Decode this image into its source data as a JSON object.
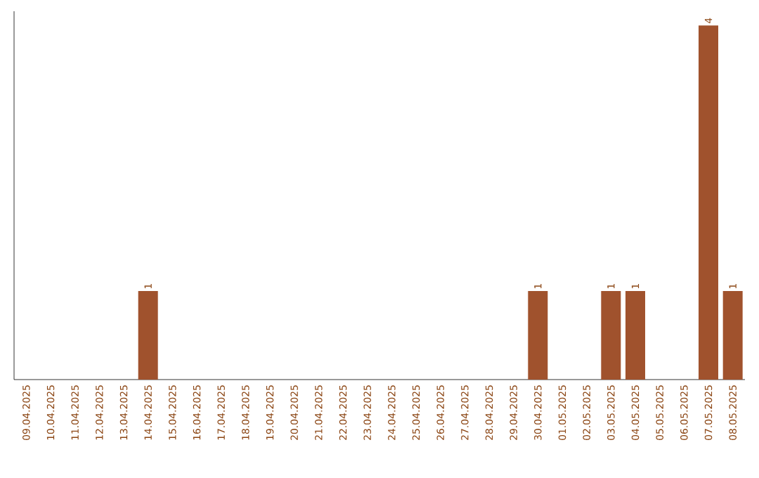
{
  "chart_data": {
    "type": "bar",
    "categories": [
      "09.04.2025",
      "10.04.2025",
      "11.04.2025",
      "12.04.2025",
      "13.04.2025",
      "14.04.2025",
      "15.04.2025",
      "16.04.2025",
      "17.04.2025",
      "18.04.2025",
      "19.04.2025",
      "20.04.2025",
      "21.04.2025",
      "22.04.2025",
      "23.04.2025",
      "24.04.2025",
      "25.04.2025",
      "26.04.2025",
      "27.04.2025",
      "28.04.2025",
      "29.04.2025",
      "30.04.2025",
      "01.05.2025",
      "02.05.2025",
      "03.05.2025",
      "04.05.2025",
      "05.05.2025",
      "06.05.2025",
      "07.05.2025",
      "08.05.2025"
    ],
    "values": [
      0,
      0,
      0,
      0,
      0,
      1,
      0,
      0,
      0,
      0,
      0,
      0,
      0,
      0,
      0,
      0,
      0,
      0,
      0,
      0,
      0,
      1,
      0,
      0,
      1,
      1,
      0,
      0,
      4,
      1
    ],
    "value_labels": [
      null,
      null,
      null,
      null,
      null,
      "1",
      null,
      null,
      null,
      null,
      null,
      null,
      null,
      null,
      null,
      null,
      null,
      null,
      null,
      null,
      null,
      "1",
      null,
      null,
      "1",
      "1",
      null,
      null,
      "4",
      "1"
    ],
    "color": "#a0522d",
    "tick_labels": "x"
  }
}
